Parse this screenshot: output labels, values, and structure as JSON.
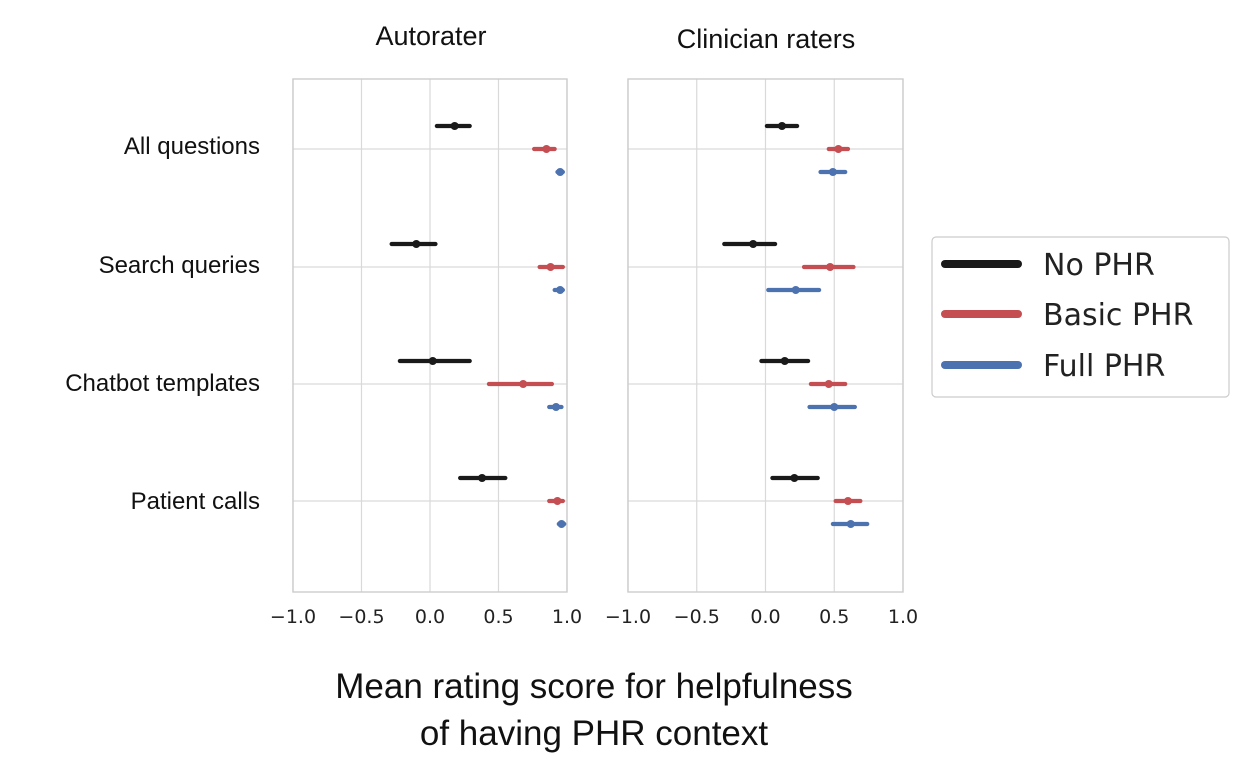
{
  "chart_data": {
    "type": "scatter",
    "xlabel": [
      "Mean rating score for helpfulness",
      "of having PHR context"
    ],
    "xlim": [
      -1.0,
      1.0
    ],
    "xticks": [
      -1.0,
      -0.5,
      0.0,
      0.5,
      1.0
    ],
    "xtick_labels": [
      "−1.0",
      "−0.5",
      "0.0",
      "0.5",
      "1.0"
    ],
    "categories": [
      "All questions",
      "Search queries",
      "Chatbot templates",
      "Patient calls"
    ],
    "grid": true,
    "legend_position": "right",
    "series_style": [
      {
        "name": "No PHR",
        "color": "#1a1a1a"
      },
      {
        "name": "Basic PHR",
        "color": "#c44e52"
      },
      {
        "name": "Full PHR",
        "color": "#4c72b0"
      }
    ],
    "panels": [
      {
        "title": "Autorater",
        "series": [
          {
            "name": "No PHR",
            "points": [
              {
                "category": "All questions",
                "mean": 0.18,
                "lo": 0.05,
                "hi": 0.29
              },
              {
                "category": "Search queries",
                "mean": -0.1,
                "lo": -0.28,
                "hi": 0.04
              },
              {
                "category": "Chatbot templates",
                "mean": 0.02,
                "lo": -0.22,
                "hi": 0.29
              },
              {
                "category": "Patient calls",
                "mean": 0.38,
                "lo": 0.22,
                "hi": 0.55
              }
            ]
          },
          {
            "name": "Basic PHR",
            "points": [
              {
                "category": "All questions",
                "mean": 0.85,
                "lo": 0.76,
                "hi": 0.91
              },
              {
                "category": "Search queries",
                "mean": 0.88,
                "lo": 0.8,
                "hi": 0.97
              },
              {
                "category": "Chatbot templates",
                "mean": 0.68,
                "lo": 0.43,
                "hi": 0.89
              },
              {
                "category": "Patient calls",
                "mean": 0.93,
                "lo": 0.87,
                "hi": 0.97
              }
            ]
          },
          {
            "name": "Full PHR",
            "points": [
              {
                "category": "All questions",
                "mean": 0.95,
                "lo": 0.93,
                "hi": 0.97
              },
              {
                "category": "Search queries",
                "mean": 0.95,
                "lo": 0.91,
                "hi": 0.97
              },
              {
                "category": "Chatbot templates",
                "mean": 0.92,
                "lo": 0.87,
                "hi": 0.96
              },
              {
                "category": "Patient calls",
                "mean": 0.96,
                "lo": 0.94,
                "hi": 0.98
              }
            ]
          }
        ]
      },
      {
        "title": "Clinician raters",
        "series": [
          {
            "name": "No PHR",
            "points": [
              {
                "category": "All questions",
                "mean": 0.12,
                "lo": 0.01,
                "hi": 0.23
              },
              {
                "category": "Search queries",
                "mean": -0.09,
                "lo": -0.3,
                "hi": 0.07
              },
              {
                "category": "Chatbot templates",
                "mean": 0.14,
                "lo": -0.03,
                "hi": 0.31
              },
              {
                "category": "Patient calls",
                "mean": 0.21,
                "lo": 0.05,
                "hi": 0.38
              }
            ]
          },
          {
            "name": "Basic PHR",
            "points": [
              {
                "category": "All questions",
                "mean": 0.53,
                "lo": 0.46,
                "hi": 0.6
              },
              {
                "category": "Search queries",
                "mean": 0.47,
                "lo": 0.28,
                "hi": 0.64
              },
              {
                "category": "Chatbot templates",
                "mean": 0.46,
                "lo": 0.33,
                "hi": 0.58
              },
              {
                "category": "Patient calls",
                "mean": 0.6,
                "lo": 0.51,
                "hi": 0.69
              }
            ]
          },
          {
            "name": "Full PHR",
            "points": [
              {
                "category": "All questions",
                "mean": 0.49,
                "lo": 0.4,
                "hi": 0.58
              },
              {
                "category": "Search queries",
                "mean": 0.22,
                "lo": 0.02,
                "hi": 0.39
              },
              {
                "category": "Chatbot templates",
                "mean": 0.5,
                "lo": 0.32,
                "hi": 0.65
              },
              {
                "category": "Patient calls",
                "mean": 0.62,
                "lo": 0.49,
                "hi": 0.74
              }
            ]
          }
        ]
      }
    ]
  }
}
